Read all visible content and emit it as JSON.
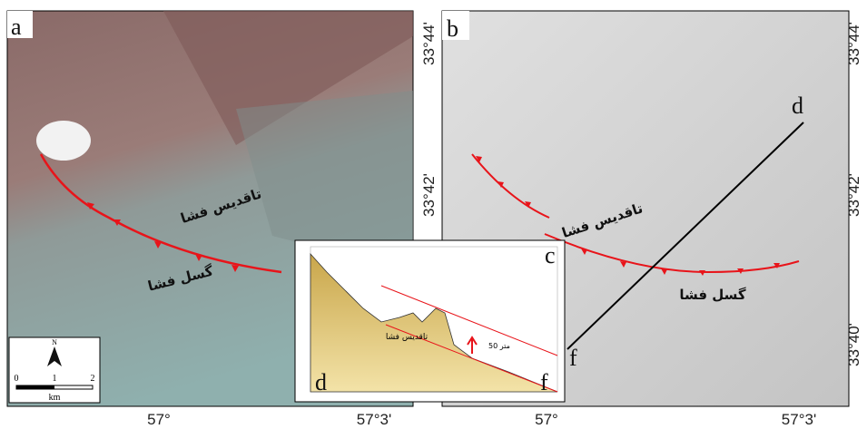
{
  "panel_a": {
    "label": "a",
    "lat_labels": [
      "33°44'",
      "33°42'"
    ],
    "lon_labels": [
      "57°",
      "57°3'"
    ],
    "anticline_label": "تاقدیس فشا",
    "fault_label": "گسل فشا",
    "scale": {
      "ticks": [
        "0",
        "1",
        "2"
      ],
      "unit": "km",
      "north": "N"
    }
  },
  "panel_b": {
    "label": "b",
    "lat_labels": [
      "33°44'",
      "33°42'",
      "33°40'"
    ],
    "lon_labels": [
      "57°",
      "57°3'"
    ],
    "anticline_label": "تاقدیس فشا",
    "fault_label": "گسل فشا",
    "profile_start": "d",
    "profile_end": "f"
  },
  "profile": {
    "label": "c",
    "start": "d",
    "end": "f",
    "anticline_label": "تاقدیس فشا",
    "height_note": "50 متر"
  }
}
